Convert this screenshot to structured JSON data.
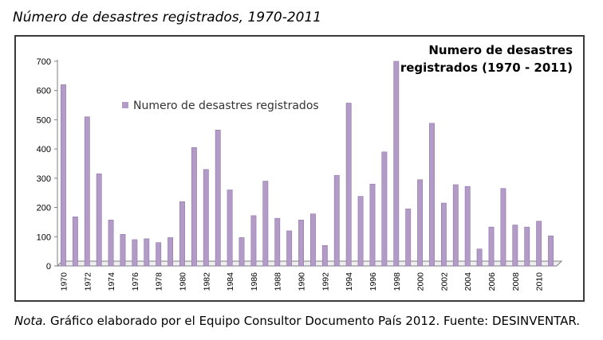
{
  "figure_title": "Número de desastres registrados, 1970-2011",
  "note": {
    "lead": "Nota.",
    "text": "Gráfico elaborado por el Equipo Consultor Documento País 2012. Fuente: DESINVENTAR."
  },
  "colors": {
    "bar": "#b39bc8",
    "bar_edge": "#8f76a8",
    "axis": "#7f7f7f"
  },
  "chart_data": {
    "type": "bar",
    "title": "Numero de desastres registrados (1970 - 2011)",
    "title_lines": [
      "Numero de desastres",
      "registrados (1970 - 2011)"
    ],
    "legend": "Numero de desastres registrados",
    "legend_position": "top-left",
    "grid": false,
    "ylim": [
      0,
      700
    ],
    "yticks": [
      0,
      100,
      200,
      300,
      400,
      500,
      600,
      700
    ],
    "x_tick_labels": [
      "1970",
      "1972",
      "1974",
      "1976",
      "1978",
      "1980",
      "1982",
      "1984",
      "1986",
      "1988",
      "1990",
      "1992",
      "1994",
      "1996",
      "1998",
      "2000",
      "2002",
      "2004",
      "2006",
      "2008",
      "2010"
    ],
    "categories": [
      "1970",
      "1971",
      "1972",
      "1973",
      "1974",
      "1975",
      "1976",
      "1977",
      "1978",
      "1979",
      "1980",
      "1981",
      "1982",
      "1983",
      "1984",
      "1985",
      "1986",
      "1987",
      "1988",
      "1989",
      "1990",
      "1991",
      "1992",
      "1993",
      "1994",
      "1995",
      "1996",
      "1997",
      "1998",
      "1999",
      "2000",
      "2001",
      "2002",
      "2003",
      "2004",
      "2005",
      "2006",
      "2007",
      "2008",
      "2009",
      "2010",
      "2011"
    ],
    "series": [
      {
        "name": "Numero de desastres registrados",
        "values": [
          620,
          168,
          510,
          315,
          157,
          108,
          90,
          93,
          80,
          97,
          220,
          405,
          330,
          465,
          260,
          97,
          172,
          290,
          163,
          120,
          157,
          178,
          70,
          310,
          557,
          238,
          280,
          390,
          700,
          195,
          295,
          488,
          215,
          278,
          272,
          58,
          133,
          265,
          140,
          133,
          153,
          103
        ]
      }
    ]
  }
}
